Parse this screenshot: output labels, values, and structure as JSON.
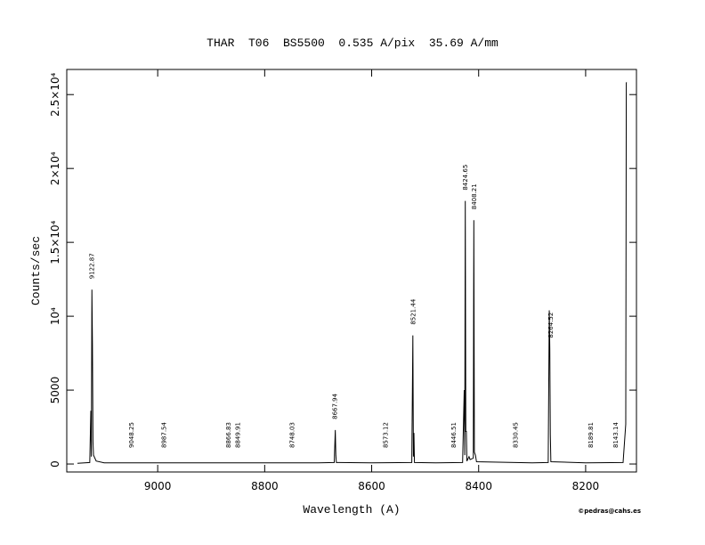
{
  "chart_data": {
    "type": "line",
    "title": "THAR  T06  BS5500  0.535 A/pix  35.69 A/mm",
    "x_label": "Wavelength (A)",
    "y_label": "Counts/sec",
    "credit": "©pedras@cahs.es",
    "xlim": [
      9170,
      8105
    ],
    "ylim": [
      -540,
      26700
    ],
    "xticks": [
      9000,
      8800,
      8600,
      8400,
      8200
    ],
    "yticks": [
      0,
      5000,
      {
        "value": 10000,
        "label": "10⁴"
      },
      {
        "value": 15000,
        "label": "1.5×10⁴"
      },
      {
        "value": 20000,
        "label": "2×10⁴"
      },
      {
        "value": 25000,
        "label": "2.5×10⁴"
      }
    ],
    "series": [
      {
        "name": "spectrum",
        "color": "#000000",
        "x": [
          9150,
          9127,
          9125,
          9124,
          9123,
          9122,
          9121,
          9120,
          9115,
          9100,
          8700,
          8670,
          8668,
          8667,
          8666,
          8600,
          8525,
          8523,
          8522,
          8521,
          8520,
          8480,
          8430,
          8427,
          8426,
          8425,
          8424,
          8423,
          8422,
          8418,
          8416,
          8410,
          8409,
          8408,
          8406,
          8404,
          8300,
          8270,
          8268,
          8267,
          8266,
          8265,
          8200,
          8130,
          8125,
          8124,
          8123
        ],
        "values": [
          50,
          100,
          3600,
          500,
          11800,
          8100,
          1500,
          600,
          200,
          80,
          80,
          100,
          2300,
          600,
          100,
          80,
          100,
          8700,
          500,
          2100,
          100,
          80,
          100,
          5000,
          600,
          17800,
          2200,
          2200,
          200,
          500,
          300,
          400,
          16500,
          800,
          600,
          150,
          80,
          100,
          10400,
          7800,
          2000,
          150,
          80,
          100,
          2700,
          25800,
          25800
        ]
      }
    ],
    "annotations": [
      9122.87,
      9048.25,
      8987.54,
      8866.83,
      8849.91,
      8748.03,
      8667.94,
      8573.12,
      8521.44,
      8446.51,
      8424.65,
      8408.21,
      8330.45,
      8264.52,
      8189.81,
      8143.14
    ]
  }
}
